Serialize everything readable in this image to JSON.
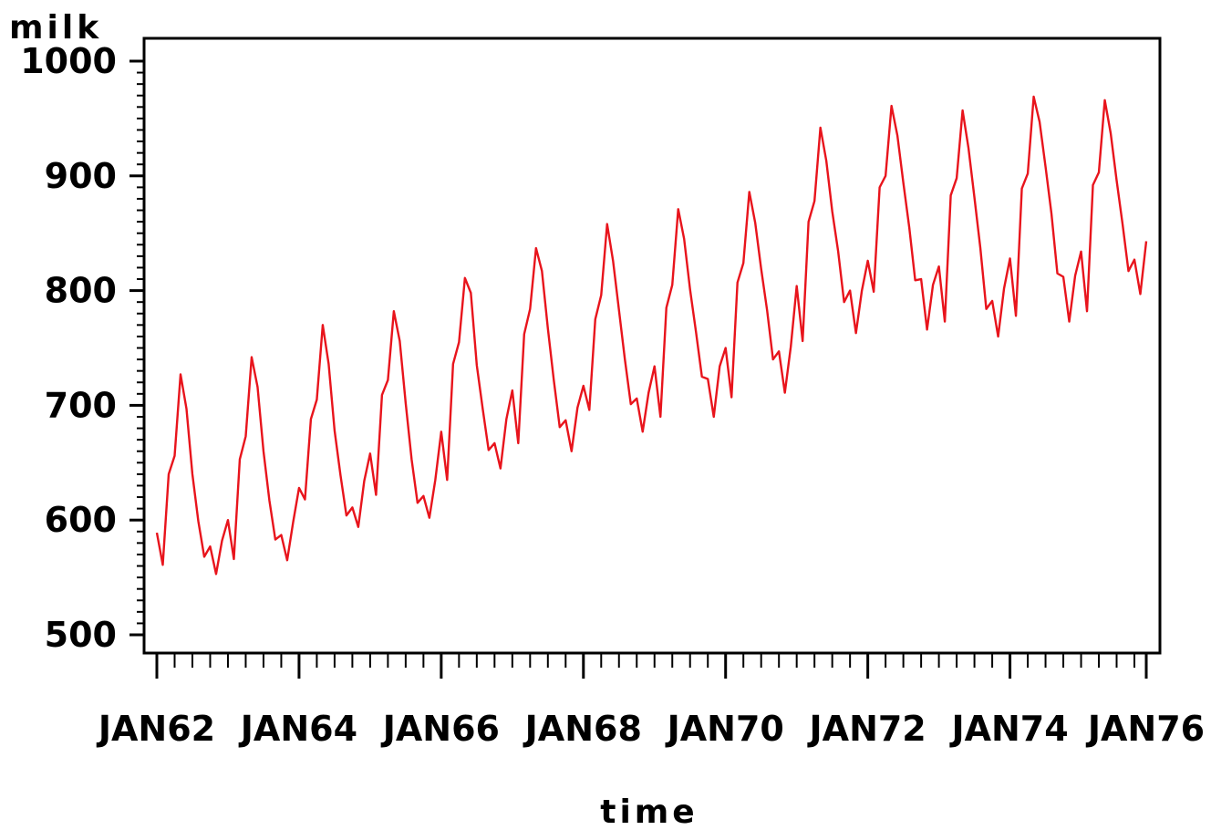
{
  "chart_data": {
    "type": "line",
    "title": "",
    "xlabel": "time",
    "ylabel": "milk",
    "ylim": [
      500,
      1000
    ],
    "xlim": [
      "1962-01",
      "1975-12"
    ],
    "grid": false,
    "legend": "none",
    "yticks": [
      500,
      600,
      700,
      800,
      900,
      1000
    ],
    "xticks": [
      "JAN62",
      "JAN64",
      "JAN66",
      "JAN68",
      "JAN70",
      "JAN72",
      "JAN74",
      "JAN76"
    ],
    "series": [
      {
        "color": "#e8141c",
        "x_start": "1962-01",
        "x_step": "month",
        "values": [
          589,
          561,
          640,
          656,
          727,
          697,
          640,
          599,
          568,
          577,
          553,
          582,
          600,
          566,
          653,
          673,
          742,
          716,
          660,
          617,
          583,
          587,
          565,
          598,
          628,
          618,
          688,
          705,
          770,
          736,
          678,
          639,
          604,
          611,
          594,
          634,
          658,
          622,
          709,
          722,
          782,
          756,
          702,
          653,
          615,
          621,
          602,
          635,
          677,
          635,
          736,
          755,
          811,
          798,
          735,
          697,
          661,
          667,
          645,
          688,
          713,
          667,
          762,
          784,
          837,
          817,
          767,
          722,
          681,
          687,
          660,
          698,
          717,
          696,
          775,
          796,
          858,
          826,
          783,
          740,
          701,
          706,
          677,
          711,
          734,
          690,
          785,
          805,
          871,
          845,
          801,
          764,
          725,
          723,
          690,
          734,
          750,
          707,
          807,
          824,
          886,
          859,
          819,
          783,
          740,
          747,
          711,
          751,
          804,
          756,
          860,
          878,
          942,
          913,
          869,
          834,
          790,
          800,
          763,
          800,
          826,
          799,
          890,
          900,
          961,
          935,
          894,
          855,
          809,
          810,
          766,
          805,
          821,
          773,
          883,
          898,
          957,
          924,
          881,
          837,
          784,
          791,
          760,
          802,
          828,
          778,
          889,
          902,
          969,
          947,
          908,
          867,
          815,
          812,
          773,
          813,
          834,
          782,
          892,
          903,
          966,
          937,
          896,
          858,
          817,
          827,
          797,
          843
        ]
      }
    ]
  }
}
